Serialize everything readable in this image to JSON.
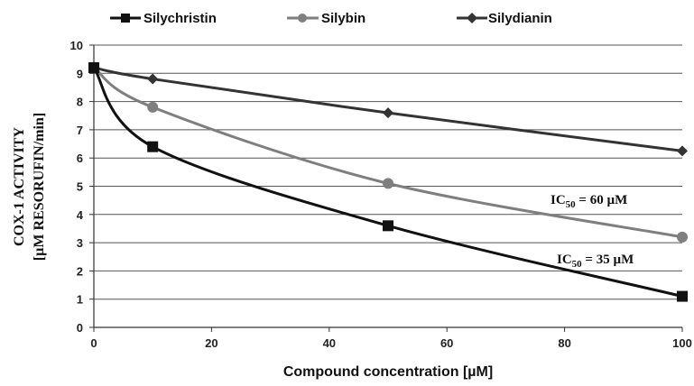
{
  "chart_data": {
    "type": "line",
    "xlabel": "Compound concentration [µM]",
    "ylabel": [
      "COX-1 ACTIVITY",
      "[µM RESORUFIN/min]"
    ],
    "xlim": [
      0,
      100
    ],
    "ylim": [
      0,
      10
    ],
    "xticks": [
      0,
      20,
      40,
      60,
      80,
      100
    ],
    "yticks": [
      0,
      1,
      2,
      3,
      4,
      5,
      6,
      7,
      8,
      9,
      10
    ],
    "grid": "horizontal",
    "legend_position": "top",
    "series": [
      {
        "name": "Silychristin",
        "marker": "square",
        "color": "#111111",
        "x": [
          0,
          10,
          50,
          100
        ],
        "y": [
          9.2,
          6.4,
          3.6,
          1.1
        ]
      },
      {
        "name": "Silybin",
        "marker": "circle",
        "color": "#7f7f7f",
        "x": [
          0,
          10,
          50,
          100
        ],
        "y": [
          9.2,
          7.8,
          5.1,
          3.2
        ]
      },
      {
        "name": "Silydianin",
        "marker": "diamond",
        "color": "#333333",
        "x": [
          0,
          10,
          50,
          100
        ],
        "y": [
          9.2,
          8.8,
          7.6,
          6.25
        ]
      }
    ],
    "annotations": [
      {
        "text_main": "IC",
        "text_sub": "50",
        "text_rest": " = 60 µM"
      },
      {
        "text_main": "IC",
        "text_sub": "50",
        "text_rest": " = 35 µM"
      }
    ]
  }
}
